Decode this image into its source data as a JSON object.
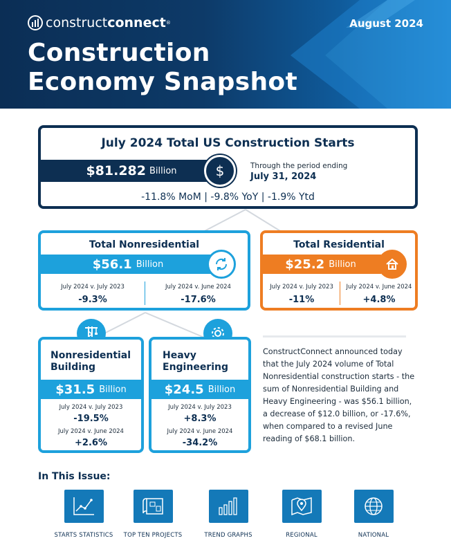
{
  "header": {
    "logo_light": "construct",
    "logo_bold": "connect",
    "logo_reg": "®",
    "date": "August 2024",
    "title_line1": "Construction",
    "title_line2": "Economy Snapshot"
  },
  "total": {
    "title": "July 2024 Total US Construction Starts",
    "value": "$81.282",
    "unit": "Billion",
    "period_label": "Through the period ending",
    "period_date": "July 31, 2024",
    "changes": "-11.8% MoM | -9.8% YoY | -1.9% Ytd",
    "icon": "dollar-icon"
  },
  "nonresidential": {
    "title": "Total Nonresidential",
    "value": "$56.1",
    "unit": "Billion",
    "cmp1_label": "July 2024 v. July 2023",
    "cmp1_value": "-9.3%",
    "cmp2_label": "July 2024 v. June 2024",
    "cmp2_value": "-17.6%",
    "icon": "refresh-icon"
  },
  "residential": {
    "title": "Total Residential",
    "value": "$25.2",
    "unit": "Billion",
    "cmp1_label": "July 2024 v. July 2023",
    "cmp1_value": "-11%",
    "cmp2_label": "July 2024 v. June 2024",
    "cmp2_value": "+4.8%",
    "icon": "house-icon"
  },
  "nonres_building": {
    "title_line1": "Nonresidential",
    "title_line2": "Building",
    "value": "$31.5",
    "unit": "Billion",
    "cmp1_label": "July 2024 v. July 2023",
    "cmp1_value": "-19.5%",
    "cmp2_label": "July 2024 v. June 2024",
    "cmp2_value": "+2.6%",
    "icon": "crane-icon"
  },
  "heavy_engineering": {
    "title_line1": "Heavy",
    "title_line2": "Engineering",
    "value": "$24.5",
    "unit": "Billion",
    "cmp1_label": "July 2024 v. July 2023",
    "cmp1_value": "+8.3%",
    "cmp2_label": "July 2024 v. June 2024",
    "cmp2_value": "-34.2%",
    "icon": "gear-icon"
  },
  "paragraph": "ConstructConnect announced today that the July 2024 volume of Total Nonresidential construction starts - the sum of Nonresidential Building and Heavy Engineering - was $56.1 billion, a decrease of $12.0 billion, or -17.6%, when compared to a revised June reading of $68.1 billion.",
  "issue": {
    "title": "In This Issue:",
    "items": [
      {
        "label": "STARTS STATISTICS",
        "icon": "line-chart-icon"
      },
      {
        "label": "TOP TEN PROJECTS",
        "icon": "blueprint-icon"
      },
      {
        "label": "TREND GRAPHS",
        "icon": "bar-chart-icon"
      },
      {
        "label": "REGIONAL",
        "icon": "map-pin-icon"
      },
      {
        "label": "NATIONAL",
        "icon": "globe-icon"
      }
    ]
  },
  "colors": {
    "navy": "#0d2f52",
    "blue": "#1da1dc",
    "orange": "#ee7d22",
    "tile_blue": "#1479b8"
  }
}
